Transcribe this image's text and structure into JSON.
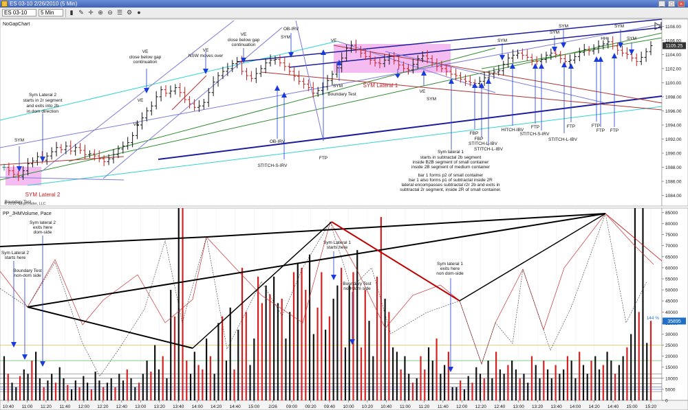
{
  "window": {
    "title": "ES 03-10  2/26/2010 (5 Min)",
    "buttons": {
      "minimize": "_",
      "maximize": "□",
      "close": "×"
    }
  },
  "toolbar": {
    "instrument": "ES 03-10",
    "interval": "5 Min"
  },
  "chart_data": [
    {
      "type": "bar",
      "title": "NoGapChart",
      "ylim": [
        1082.5,
        1109
      ],
      "ytick_labels": [
        "1084.00",
        "1086.00",
        "1088.00",
        "1090.00",
        "1092.00",
        "1094.00",
        "1096.00",
        "1098.00",
        "1100.00",
        "1102.00",
        "1104.00",
        "1106.00",
        "1108.00"
      ],
      "ytick_values": [
        1084,
        1086,
        1088,
        1090,
        1092,
        1094,
        1096,
        1098,
        1100,
        1102,
        1104,
        1106,
        1108
      ],
      "last_price": "1105.25",
      "copyright": "© 2010 NinjaTrader, LLC",
      "bar_closes": [
        1088.0,
        1087.5,
        1087.0,
        1086.7,
        1087.5,
        1088.5,
        1088.9,
        1089.5,
        1089.0,
        1089.6,
        1090.2,
        1090.8,
        1090.5,
        1091.0,
        1090.3,
        1090.8,
        1090.4,
        1089.8,
        1089.9,
        1089.6,
        1089.2,
        1088.8,
        1089.2,
        1089.8,
        1090.6,
        1091.0,
        1091.5,
        1092.5,
        1094.0,
        1095.0,
        1096.0,
        1096.7,
        1098.0,
        1099.0,
        1098.5,
        1098.8,
        1099.3,
        1098.6,
        1097.6,
        1097.0,
        1096.5,
        1096.7,
        1097.2,
        1098.6,
        1100.1,
        1101.0,
        1101.6,
        1102.0,
        1102.7,
        1103.0,
        1101.6,
        1101.0,
        1100.6,
        1101.3,
        1102.0,
        1102.8,
        1103.2,
        1103.3,
        1102.8,
        1102.3,
        1101.6,
        1100.9,
        1100.2,
        1099.8,
        1099.3,
        1098.5,
        1098.9,
        1099.4,
        1100.3,
        1101.2,
        1102.1,
        1103.5,
        1104.9,
        1105.3,
        1104.7,
        1104.2,
        1103.7,
        1103.2,
        1102.8,
        1102.7,
        1103.2,
        1103.7,
        1103.1,
        1102.5,
        1102.0,
        1101.8,
        1102.6,
        1103.4,
        1103.8,
        1103.4,
        1102.8,
        1102.3,
        1102.0,
        1101.6,
        1101.2,
        1101.0,
        1100.5,
        1100.2,
        1100.0,
        1099.9,
        1100.2,
        1100.7,
        1101.2,
        1101.5,
        1101.7,
        1102.6,
        1103.5,
        1103.9,
        1104.2,
        1103.9,
        1103.6,
        1103.1,
        1103.0,
        1103.3,
        1103.9,
        1104.2,
        1104.0,
        1103.4,
        1103.0,
        1103.2,
        1103.7,
        1104.3,
        1104.7,
        1104.5,
        1104.8,
        1105.2,
        1105.5,
        1105.8,
        1105.2,
        1104.6,
        1104.2,
        1104.0,
        1103.5,
        1103.0,
        1103.6,
        1104.4,
        1105.25
      ],
      "labels": {
        "sym1": "SYM",
        "symlat2": "Sym Lateral 2",
        "symlat2b": "starts in 2r segment",
        "symlat2c": "and exits into 2b",
        "symlat2d": "in dom direction",
        "symlat2red": "SYM Lateral 2",
        "boundary": "Boundary Test",
        "ve1": "VE",
        "ve2": "VE",
        "ve3": "VE",
        "ve4": "VE",
        "ve5": "VE",
        "ve6": "VE",
        "vecg1": "close below gap",
        "vecg2": "continuation",
        "ve4b": "NSW moves over",
        "vecg3": "close below gap",
        "vecg4": "continuation",
        "obirv1": "OB-IRV",
        "sym2": "SYM",
        "obirv2": "OB-IRV",
        "stitchs": "STITCH-S-IRV",
        "ftp1": "FTP",
        "sym3": "SYM",
        "boundary2": "Boundary Test",
        "symlat1red": "SYM Lateral 1",
        "ve7": "VE",
        "sym4": "SYM",
        "symlat1a": "Sym lateral 1",
        "symlat1b": "starts in subtractal 2b segment",
        "symlat1c": "inside  B2B segment of small container",
        "symlat1d": "inside 2B segment of medium container",
        "bar1a": "bar 1 forms p2 of small container",
        "bar1b": "bar 1 also forms p1 of subtractal inside 2R",
        "bar1c": "lateral encompasses subtractal r2r 2b and exits in",
        "bar1d": "subtractal 2r segment, inside 2R of small container.",
        "fbp1": "FBP",
        "fbp2": "FBP",
        "stitchl1": "STITCH-L-IBV",
        "stitchl2": "STITCH-L-IBV",
        "hitch": "HITCH-IBV",
        "ftp2": "FTP",
        "stitchs2": "STITCH-S-IRV",
        "ftp3": "FTP",
        "stitchl3": "STITCH-L-IBV",
        "ftp4": "FTP",
        "ftp5": "FTP",
        "ftp6": "FTP",
        "sym5": "SYM",
        "sym6": "SYM",
        "sym7": "SYM",
        "sym8": "SYM",
        "hh": "HH",
        "sym9": "SYM"
      }
    },
    {
      "type": "bar",
      "title": "PP_JHMVolume, Pace",
      "ylim": [
        0,
        87000
      ],
      "ytick_labels": [
        "0",
        "5000",
        "10000",
        "15000",
        "20000",
        "25000",
        "30000",
        "35000",
        "40000",
        "45000",
        "50000",
        "55000",
        "60000",
        "65000",
        "70000",
        "75000",
        "80000",
        "85000"
      ],
      "ytick_values": [
        0,
        5000,
        10000,
        15000,
        20000,
        25000,
        30000,
        35000,
        40000,
        45000,
        50000,
        55000,
        60000,
        65000,
        70000,
        75000,
        80000,
        85000
      ],
      "last_value": "35895",
      "pace_percent": "144 %",
      "volumes": [
        20000,
        12000,
        8000,
        6000,
        11000,
        14000,
        12000,
        18000,
        22000,
        10000,
        6000,
        9000,
        12000,
        8000,
        15000,
        10000,
        7000,
        5000,
        9000,
        6000,
        11000,
        8000,
        5000,
        13000,
        9000,
        6000,
        8000,
        10000,
        6000,
        12000,
        9000,
        14000,
        10000,
        6000,
        8000,
        12000,
        18000,
        13000,
        25000,
        14000,
        20000,
        10000,
        50000,
        38000,
        88000,
        88000,
        18000,
        12000,
        22000,
        16000,
        14000,
        28000,
        20000,
        12000,
        35000,
        38000,
        18000,
        42000,
        14000,
        32000,
        60000,
        40000,
        16000,
        28000,
        56000,
        44000,
        52000,
        48000,
        56000,
        44000,
        46000,
        28000,
        40000,
        58000,
        62000,
        60000,
        50000,
        66000,
        30000,
        42000,
        58000,
        32000,
        38000,
        46000,
        52000,
        60000,
        24000,
        52000,
        58000,
        68000,
        24000,
        50000,
        36000,
        20000,
        56000,
        83000,
        46000,
        40000,
        24000,
        22000,
        14000,
        20000,
        12000,
        8000,
        10000,
        20000,
        14000,
        24000,
        18000,
        28000,
        12000,
        16000,
        22000,
        6000,
        6000,
        9000,
        5000,
        11000,
        8000,
        15000,
        12000,
        10000,
        18000,
        10000,
        22000,
        14000,
        12000,
        16000,
        18000,
        14000,
        10000,
        12000,
        8000,
        20000,
        16000,
        10000,
        18000,
        14000,
        10000,
        16000,
        12000,
        14000,
        20000,
        18000,
        10000,
        22000,
        16000,
        12000,
        18000,
        20000,
        14000,
        16000,
        22000,
        18000,
        12000,
        16000,
        20000,
        24000,
        30000,
        88000,
        40000,
        88000,
        26000,
        36000
      ],
      "labels": {
        "l1": "Sym Lateral 2",
        "l2": "starts here",
        "l3": "Boundary Test",
        "l4": "non-dom side",
        "l5": "Sym lateral 2",
        "l6": "exits here",
        "l7": "dom-side",
        "l8": "Sym Lateral 1",
        "l9": "starts here",
        "l10": "Boundary Test",
        "l11": "non-dom side",
        "l12": "Sym lateral 1",
        "l13": "exits here",
        "l14": "non dom-side"
      }
    }
  ],
  "x_axis": {
    "labels": [
      "10:40",
      "11:00",
      "11:20",
      "11:40",
      "12:00",
      "12:20",
      "12:40",
      "13:00",
      "13:20",
      "13:40",
      "14:00",
      "14:20",
      "14:40",
      "15:00",
      "2/26",
      "09:00",
      "09:20",
      "09:40",
      "10:00",
      "10:20",
      "10:40",
      "11:00",
      "11:20",
      "11:40",
      "12:00",
      "12:20",
      "12:40",
      "13:00",
      "13:20",
      "13:40",
      "14:00",
      "14:20",
      "14:40",
      "15:00",
      "15:20"
    ]
  }
}
